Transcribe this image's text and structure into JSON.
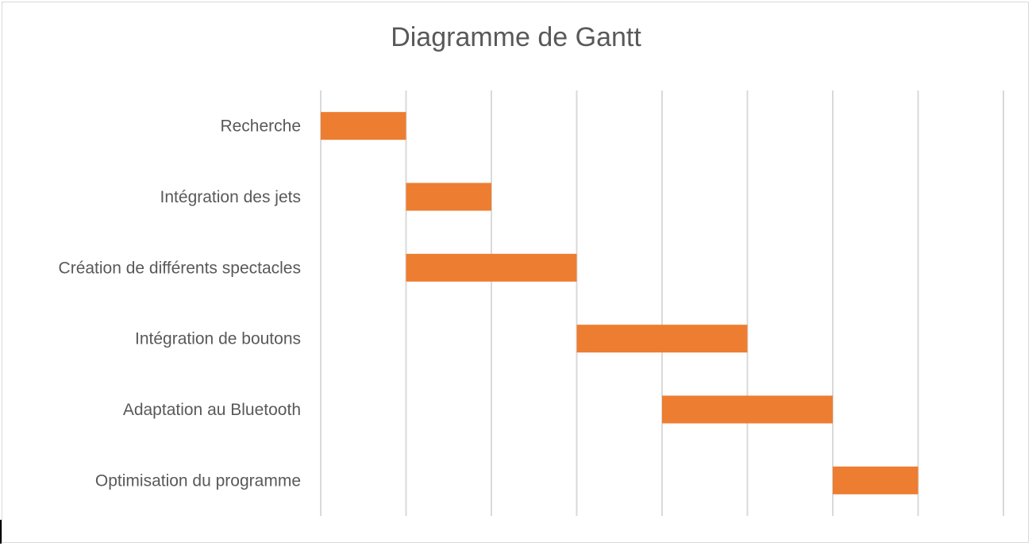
{
  "chart_data": {
    "type": "bar",
    "orientation": "horizontal-gantt",
    "title": "Diagramme de Gantt",
    "xlabel": "",
    "ylabel": "",
    "categories": [
      "Recherche",
      "Intégration des jets",
      "Création de différents spectacles",
      "Intégration de boutons",
      "Adaptation au Bluetooth",
      "Optimisation du programme"
    ],
    "series": [
      {
        "start": [
          0,
          1,
          1,
          3,
          4,
          6
        ],
        "duration": [
          1,
          1,
          2,
          2,
          2,
          1
        ]
      }
    ],
    "xlim": [
      0,
      8
    ],
    "grid": "vertical",
    "legend": "none",
    "bar_color": "#ED7D31",
    "grid_color": "#d9d9d9"
  }
}
